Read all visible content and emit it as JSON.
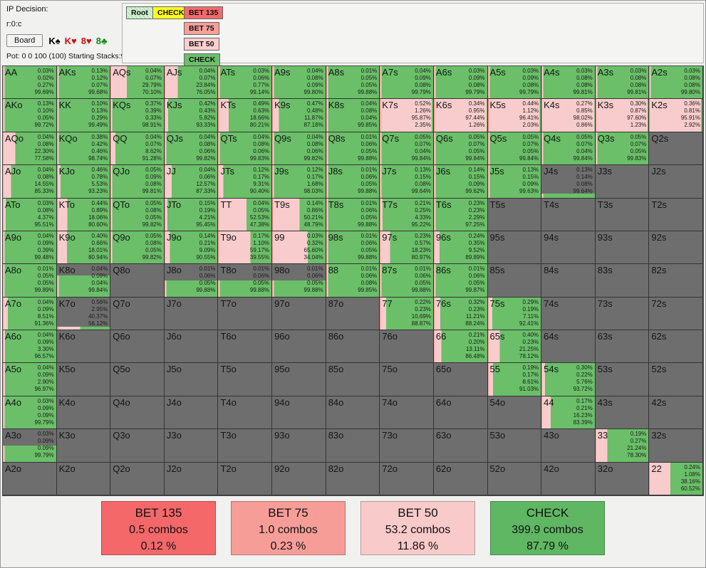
{
  "header": {
    "ip_decision": "IP Decision:",
    "node_id": "r:0:c",
    "board_button": "Board",
    "cards": [
      {
        "text": "K♠",
        "color": "#000000"
      },
      {
        "text": "K♥",
        "color": "#cc1111"
      },
      {
        "text": "8♥",
        "color": "#cc1111"
      },
      {
        "text": "8♣",
        "color": "#0d8c0d"
      }
    ],
    "pot_line": "Pot: 0 0 100 (100) Starting Stacks:950"
  },
  "tree": {
    "root": "Root",
    "check_node": "CHECK",
    "bet135": "BET 135",
    "bet75": "BET 75",
    "bet50": "BET 50",
    "check_action": "CHECK"
  },
  "colors": {
    "bet135": "#f26b6c",
    "bet75": "#f6a09a",
    "bet50": "#f8cccc",
    "check": "#6abf68",
    "not_in_range": "#6e6e6e"
  },
  "actions_order": [
    "BET 135",
    "BET 75",
    "BET 50",
    "CHECK"
  ],
  "grid": {
    "rows": [
      [
        {
          "h": "AA",
          "v": [
            "0.03%",
            "0.02%",
            "0.27%",
            "99.69%"
          ]
        },
        {
          "h": "AKs",
          "v": [
            "0.13%",
            "0.12%",
            "0.07%",
            "99.68%"
          ]
        },
        {
          "h": "AQs",
          "v": [
            "0.04%",
            "0.07%",
            "29.79%",
            "70.10%"
          ]
        },
        {
          "h": "AJs",
          "v": [
            "0.04%",
            "0.07%",
            "23.84%",
            "76.05%"
          ]
        },
        {
          "h": "ATs",
          "v": [
            "0.03%",
            "0.06%",
            "0.77%",
            "99.14%"
          ]
        },
        {
          "h": "A9s",
          "v": [
            "0.04%",
            "0.08%",
            "0.09%",
            "99.80%"
          ]
        },
        {
          "h": "A8s",
          "v": [
            "0.01%",
            "0.05%",
            "0.05%",
            "99.88%"
          ]
        },
        {
          "h": "A7s",
          "v": [
            "0.04%",
            "0.09%",
            "0.08%",
            "99.79%"
          ]
        },
        {
          "h": "A6s",
          "v": [
            "0.03%",
            "0.09%",
            "0.08%",
            "99.79%"
          ]
        },
        {
          "h": "A5s",
          "v": [
            "0.03%",
            "0.09%",
            "0.08%",
            "99.79%"
          ]
        },
        {
          "h": "A4s",
          "v": [
            "0.03%",
            "0.08%",
            "0.08%",
            "99.81%"
          ]
        },
        {
          "h": "A3s",
          "v": [
            "0.03%",
            "0.08%",
            "0.08%",
            "99.81%"
          ]
        },
        {
          "h": "A2s",
          "v": [
            "0.03%",
            "0.08%",
            "0.08%",
            "99.80%"
          ]
        }
      ],
      [
        {
          "h": "AKo",
          "v": [
            "0.13%",
            "0.10%",
            "0.05%",
            "99.72%"
          ]
        },
        {
          "h": "KK",
          "v": [
            "0.10%",
            "0.13%",
            "0.29%",
            "99.49%"
          ]
        },
        {
          "h": "KQs",
          "v": [
            "0.37%",
            "0.39%",
            "0.33%",
            "98.91%"
          ]
        },
        {
          "h": "KJs",
          "v": [
            "0.42%",
            "0.43%",
            "5.82%",
            "93.33%"
          ]
        },
        {
          "h": "KTs",
          "v": [
            "0.49%",
            "0.63%",
            "18.66%",
            "80.21%"
          ]
        },
        {
          "h": "K9s",
          "v": [
            "0.47%",
            "0.48%",
            "11.87%",
            "87.18%"
          ]
        },
        {
          "h": "K8s",
          "v": [
            "0.04%",
            "0.08%",
            "0.04%",
            "99.85%"
          ]
        },
        {
          "h": "K7s",
          "v": [
            "0.52%",
            "1.26%",
            "95.87%",
            "2.35%"
          ]
        },
        {
          "h": "K6s",
          "v": [
            "0.34%",
            "0.95%",
            "97.44%",
            "1.26%"
          ]
        },
        {
          "h": "K5s",
          "v": [
            "0.44%",
            "1.12%",
            "96.41%",
            "2.03%"
          ]
        },
        {
          "h": "K4s",
          "v": [
            "0.27%",
            "0.85%",
            "98.02%",
            "0.86%"
          ]
        },
        {
          "h": "K3s",
          "v": [
            "0.30%",
            "0.87%",
            "97.60%",
            "1.23%"
          ]
        },
        {
          "h": "K2s",
          "v": [
            "0.36%",
            "0.81%",
            "95.91%",
            "2.92%"
          ]
        }
      ],
      [
        {
          "h": "AQo",
          "v": [
            "0.04%",
            "0.08%",
            "22.30%",
            "77.58%"
          ]
        },
        {
          "h": "KQo",
          "v": [
            "0.38%",
            "0.42%",
            "0.46%",
            "98.74%"
          ]
        },
        {
          "h": "QQ",
          "v": [
            "0.04%",
            "0.07%",
            "8.62%",
            "91.28%"
          ]
        },
        {
          "h": "QJs",
          "v": [
            "0.04%",
            "0.08%",
            "0.06%",
            "99.82%"
          ]
        },
        {
          "h": "QTs",
          "v": [
            "0.04%",
            "0.08%",
            "0.06%",
            "99.83%"
          ]
        },
        {
          "h": "Q9s",
          "v": [
            "0.04%",
            "0.08%",
            "0.06%",
            "99.82%"
          ]
        },
        {
          "h": "Q8s",
          "v": [
            "0.01%",
            "0.06%",
            "0.05%",
            "99.88%"
          ]
        },
        {
          "h": "Q7s",
          "v": [
            "0.05%",
            "0.07%",
            "0.04%",
            "99.84%"
          ]
        },
        {
          "h": "Q6s",
          "v": [
            "0.05%",
            "0.07%",
            "0.05%",
            "99.84%"
          ]
        },
        {
          "h": "Q5s",
          "v": [
            "0.05%",
            "0.07%",
            "0.05%",
            "99.84%"
          ]
        },
        {
          "h": "Q4s",
          "v": [
            "0.05%",
            "0.07%",
            "0.04%",
            "99.84%"
          ]
        },
        {
          "h": "Q3s",
          "v": [
            "0.05%",
            "0.07%",
            "0.05%",
            "99.83%"
          ]
        },
        {
          "h": "Q2s"
        }
      ],
      [
        {
          "h": "AJo",
          "v": [
            "0.04%",
            "0.08%",
            "14.55%",
            "85.33%"
          ]
        },
        {
          "h": "KJo",
          "v": [
            "0.46%",
            "0.78%",
            "5.53%",
            "93.23%"
          ]
        },
        {
          "h": "QJo",
          "v": [
            "0.05%",
            "0.09%",
            "0.08%",
            "99.81%"
          ]
        },
        {
          "h": "JJ",
          "v": [
            "0.04%",
            "0.06%",
            "12.57%",
            "87.33%"
          ]
        },
        {
          "h": "JTs",
          "v": [
            "0.12%",
            "0.17%",
            "9.31%",
            "90.40%"
          ]
        },
        {
          "h": "J9s",
          "v": [
            "0.12%",
            "0.17%",
            "1.68%",
            "98.03%"
          ]
        },
        {
          "h": "J8s",
          "v": [
            "0.01%",
            "0.06%",
            "0.05%",
            "99.88%"
          ]
        },
        {
          "h": "J7s",
          "v": [
            "0.13%",
            "0.15%",
            "0.08%",
            "99.64%"
          ]
        },
        {
          "h": "J6s",
          "v": [
            "0.14%",
            "0.15%",
            "0.09%",
            "99.62%"
          ]
        },
        {
          "h": "J5s",
          "v": [
            "0.13%",
            "0.15%",
            "0.09%",
            "99.63%"
          ]
        },
        {
          "h": "J4s",
          "v": [
            "0.13%",
            "0.14%",
            "0.08%",
            "99.64%"
          ],
          "g": 0.88
        },
        {
          "h": "J3s"
        },
        {
          "h": "J2s"
        }
      ],
      [
        {
          "h": "ATo",
          "v": [
            "0.03%",
            "0.08%",
            "4.37%",
            "95.51%"
          ]
        },
        {
          "h": "KTo",
          "v": [
            "0.44%",
            "0.89%",
            "18.06%",
            "80.60%"
          ]
        },
        {
          "h": "QTo",
          "v": [
            "0.05%",
            "0.08%",
            "0.05%",
            "99.82%"
          ]
        },
        {
          "h": "JTo",
          "v": [
            "0.15%",
            "0.19%",
            "4.21%",
            "95.45%"
          ]
        },
        {
          "h": "TT",
          "v": [
            "0.04%",
            "0.05%",
            "52.53%",
            "47.38%"
          ]
        },
        {
          "h": "T9s",
          "v": [
            "0.14%",
            "0.86%",
            "50.21%",
            "48.79%"
          ]
        },
        {
          "h": "T8s",
          "v": [
            "0.01%",
            "0.06%",
            "0.05%",
            "99.88%"
          ]
        },
        {
          "h": "T7s",
          "v": [
            "0.21%",
            "0.25%",
            "4.33%",
            "95.22%"
          ]
        },
        {
          "h": "T6s",
          "v": [
            "0.23%",
            "0.23%",
            "2.29%",
            "97.25%"
          ]
        },
        {
          "h": "T5s"
        },
        {
          "h": "T4s"
        },
        {
          "h": "T3s"
        },
        {
          "h": "T2s"
        }
      ],
      [
        {
          "h": "A9o",
          "v": [
            "0.04%",
            "0.09%",
            "0.39%",
            "99.48%"
          ]
        },
        {
          "h": "K9o",
          "v": [
            "0.40%",
            "0.66%",
            "18.01%",
            "80.94%"
          ]
        },
        {
          "h": "Q9o",
          "v": [
            "0.05%",
            "0.08%",
            "0.05%",
            "99.82%"
          ]
        },
        {
          "h": "J9o",
          "v": [
            "0.14%",
            "0.21%",
            "9.09%",
            "90.55%"
          ]
        },
        {
          "h": "T9o",
          "v": [
            "0.17%",
            "1.10%",
            "59.17%",
            "39.55%"
          ]
        },
        {
          "h": "99",
          "v": [
            "0.03%",
            "0.32%",
            "65.60%",
            "34.04%"
          ]
        },
        {
          "h": "98s",
          "v": [
            "0.01%",
            "0.06%",
            "0.05%",
            "99.88%"
          ]
        },
        {
          "h": "97s",
          "v": [
            "0.23%",
            "0.57%",
            "18.23%",
            "80.97%"
          ]
        },
        {
          "h": "96s",
          "v": [
            "0.24%",
            "0.35%",
            "9.52%",
            "89.89%"
          ]
        },
        {
          "h": "95s"
        },
        {
          "h": "94s"
        },
        {
          "h": "93s"
        },
        {
          "h": "92s"
        }
      ],
      [
        {
          "h": "A8o",
          "v": [
            "0.01%",
            "0.05%",
            "0.05%",
            "99.89%"
          ]
        },
        {
          "h": "K8o",
          "v": [
            "0.04%",
            "0.09%",
            "0.04%",
            "99.84%"
          ],
          "g": 0.35
        },
        {
          "h": "Q8o"
        },
        {
          "h": "J8o",
          "v": [
            "0.01%",
            "0.06%",
            "0.05%",
            "99.88%"
          ],
          "g": 0.5
        },
        {
          "h": "T8o",
          "v": [
            "0.01%",
            "0.06%",
            "0.05%",
            "99.88%"
          ],
          "g": 0.5
        },
        {
          "h": "98o",
          "v": [
            "0.01%",
            "0.06%",
            "0.05%",
            "99.88%"
          ],
          "g": 0.5
        },
        {
          "h": "88",
          "v": [
            "0.01%",
            "0.06%",
            "0.08%",
            "99.85%"
          ]
        },
        {
          "h": "87s",
          "v": [
            "0.01%",
            "0.06%",
            "0.05%",
            "99.88%"
          ]
        },
        {
          "h": "86s",
          "v": [
            "0.01%",
            "0.06%",
            "0.05%",
            "99.87%"
          ]
        },
        {
          "h": "85s"
        },
        {
          "h": "84s"
        },
        {
          "h": "83s"
        },
        {
          "h": "82s"
        }
      ],
      [
        {
          "h": "A7o",
          "v": [
            "0.04%",
            "0.09%",
            "8.51%",
            "91.36%"
          ]
        },
        {
          "h": "K7o",
          "v": [
            "0.56%",
            "2.95%",
            "40.37%",
            "56.12%"
          ],
          "g": 0.9
        },
        {
          "h": "Q7o"
        },
        {
          "h": "J7o"
        },
        {
          "h": "T7o"
        },
        {
          "h": "97o"
        },
        {
          "h": "87o"
        },
        {
          "h": "77",
          "v": [
            "0.22%",
            "0.23%",
            "10.69%",
            "88.87%"
          ]
        },
        {
          "h": "76s",
          "v": [
            "0.32%",
            "0.23%",
            "11.21%",
            "88.24%"
          ]
        },
        {
          "h": "75s",
          "v": [
            "0.29%",
            "0.19%",
            "7.11%",
            "92.41%"
          ]
        },
        {
          "h": "74s"
        },
        {
          "h": "73s"
        },
        {
          "h": "72s"
        }
      ],
      [
        {
          "h": "A6o",
          "v": [
            "0.04%",
            "0.09%",
            "3.30%",
            "96.57%"
          ]
        },
        {
          "h": "K6o"
        },
        {
          "h": "Q6o"
        },
        {
          "h": "J6o"
        },
        {
          "h": "T6o"
        },
        {
          "h": "96o"
        },
        {
          "h": "86o"
        },
        {
          "h": "76o"
        },
        {
          "h": "66",
          "v": [
            "0.21%",
            "0.20%",
            "13.11%",
            "86.48%"
          ]
        },
        {
          "h": "65s",
          "v": [
            "0.40%",
            "0.23%",
            "21.25%",
            "78.12%"
          ]
        },
        {
          "h": "64s"
        },
        {
          "h": "63s"
        },
        {
          "h": "62s"
        }
      ],
      [
        {
          "h": "A5o",
          "v": [
            "0.04%",
            "0.09%",
            "2.90%",
            "96.97%"
          ]
        },
        {
          "h": "K5o"
        },
        {
          "h": "Q5o"
        },
        {
          "h": "J5o"
        },
        {
          "h": "T5o"
        },
        {
          "h": "95o"
        },
        {
          "h": "85o"
        },
        {
          "h": "75o"
        },
        {
          "h": "65o"
        },
        {
          "h": "55",
          "v": [
            "0.19%",
            "0.17%",
            "8.61%",
            "91.03%"
          ]
        },
        {
          "h": "54s",
          "v": [
            "0.30%",
            "0.22%",
            "5.76%",
            "93.72%"
          ]
        },
        {
          "h": "53s"
        },
        {
          "h": "52s"
        }
      ],
      [
        {
          "h": "A4o",
          "v": [
            "0.03%",
            "0.09%",
            "0.09%",
            "99.79%"
          ]
        },
        {
          "h": "K4o"
        },
        {
          "h": "Q4o"
        },
        {
          "h": "J4o"
        },
        {
          "h": "T4o"
        },
        {
          "h": "94o"
        },
        {
          "h": "84o"
        },
        {
          "h": "74o"
        },
        {
          "h": "64o"
        },
        {
          "h": "54o"
        },
        {
          "h": "44",
          "v": [
            "0.17%",
            "0.21%",
            "16.23%",
            "83.39%"
          ]
        },
        {
          "h": "43s"
        },
        {
          "h": "42s"
        }
      ],
      [
        {
          "h": "A3o",
          "v": [
            "0.03%",
            "0.09%",
            "0.09%",
            "99.79%"
          ],
          "g": 0.5
        },
        {
          "h": "K3o"
        },
        {
          "h": "Q3o"
        },
        {
          "h": "J3o"
        },
        {
          "h": "T3o"
        },
        {
          "h": "93o"
        },
        {
          "h": "83o"
        },
        {
          "h": "73o"
        },
        {
          "h": "63o"
        },
        {
          "h": "53o"
        },
        {
          "h": "43o"
        },
        {
          "h": "33",
          "v": [
            "0.19%",
            "0.27%",
            "21.24%",
            "78.30%"
          ]
        },
        {
          "h": "32s"
        }
      ],
      [
        {
          "h": "A2o"
        },
        {
          "h": "K2o"
        },
        {
          "h": "Q2o"
        },
        {
          "h": "J2o"
        },
        {
          "h": "T2o"
        },
        {
          "h": "92o"
        },
        {
          "h": "82o"
        },
        {
          "h": "72o"
        },
        {
          "h": "62o"
        },
        {
          "h": "52o"
        },
        {
          "h": "42o"
        },
        {
          "h": "32o"
        },
        {
          "h": "22",
          "v": [
            "0.24%",
            "1.08%",
            "38.16%",
            "60.52%"
          ]
        }
      ]
    ]
  },
  "summary": [
    {
      "label": "BET 135",
      "combos": "0.5 combos",
      "pct": "0.12 %",
      "color": "#f4686a"
    },
    {
      "label": "BET 75",
      "combos": "1.0 combos",
      "pct": "0.23 %",
      "color": "#f79d98"
    },
    {
      "label": "BET 50",
      "combos": "53.2 combos",
      "pct": "11.86 %",
      "color": "#f9caca"
    },
    {
      "label": "CHECK",
      "combos": "399.9 combos",
      "pct": "87.79 %",
      "color": "#5fb763"
    }
  ]
}
